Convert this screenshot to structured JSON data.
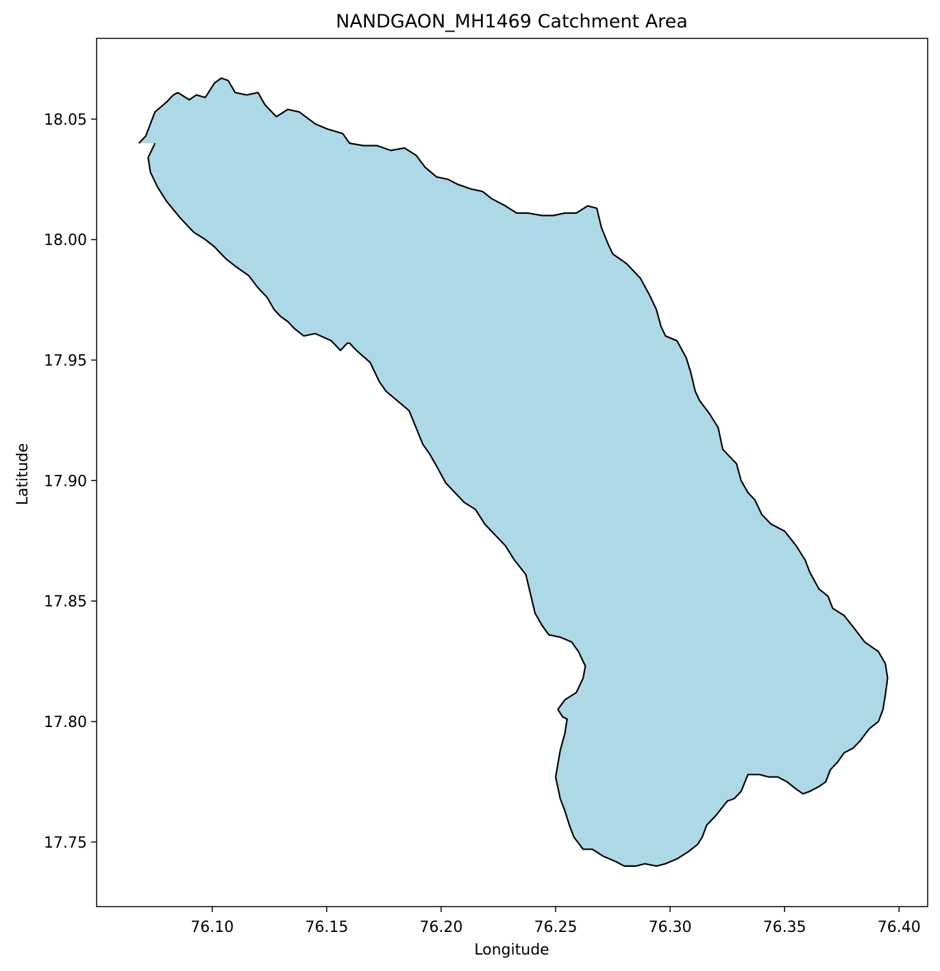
{
  "chart_data": {
    "type": "area",
    "title": "NANDGAON_MH1469 Catchment Area",
    "xlabel": "Longitude",
    "ylabel": "Latitude",
    "xlim": [
      76.0495,
      76.4125
    ],
    "ylim": [
      17.7232,
      18.0835
    ],
    "xticks": [
      76.1,
      76.15,
      76.2,
      76.25,
      76.3,
      76.35,
      76.4
    ],
    "xtick_labels": [
      "76.10",
      "76.15",
      "76.20",
      "76.25",
      "76.30",
      "76.35",
      "76.40"
    ],
    "yticks": [
      17.75,
      17.8,
      17.85,
      17.9,
      17.95,
      18.0,
      18.05
    ],
    "ytick_labels": [
      "17.75",
      "17.80",
      "17.85",
      "17.90",
      "17.95",
      "18.00",
      "18.05"
    ],
    "grid": false,
    "fill_color": "#add8e6",
    "edge_color": "#000000",
    "boundary": {
      "lon": [
        76.068,
        76.071,
        76.073,
        76.075,
        76.08,
        76.083,
        76.085,
        76.09,
        76.093,
        76.097,
        76.101,
        76.104,
        76.107,
        76.11,
        76.115,
        76.12,
        76.123,
        76.128,
        76.133,
        76.138,
        76.145,
        76.15,
        76.157,
        76.16,
        76.166,
        76.172,
        76.178,
        76.184,
        76.189,
        76.193,
        76.198,
        76.203,
        76.207,
        76.213,
        76.218,
        76.222,
        76.228,
        76.233,
        76.238,
        76.244,
        76.249,
        76.254,
        76.259,
        76.264,
        76.268,
        76.27,
        76.273,
        76.275,
        76.281,
        76.287,
        76.291,
        76.294,
        76.296,
        76.298,
        76.303,
        76.307,
        76.309,
        76.311,
        76.313,
        76.317,
        76.321,
        76.323,
        76.329,
        76.331,
        76.334,
        76.337,
        76.34,
        76.344,
        76.35,
        76.355,
        76.359,
        76.361,
        76.365,
        76.369,
        76.371,
        76.376,
        76.381,
        76.385,
        76.388,
        76.391,
        76.394,
        76.395,
        76.394,
        76.393,
        76.391,
        76.387,
        76.383,
        76.38,
        76.376,
        76.373,
        76.37,
        76.368,
        76.365,
        76.361,
        76.358,
        76.355,
        76.351,
        76.347,
        76.343,
        76.339,
        76.334,
        76.331,
        76.328,
        76.325,
        76.32,
        76.316,
        76.314,
        76.312,
        76.308,
        76.303,
        76.298,
        76.294,
        76.289,
        76.285,
        76.28,
        76.276,
        76.271,
        76.266,
        76.262,
        76.258,
        76.256,
        76.254,
        76.252,
        76.25,
        76.252,
        76.254,
        76.255,
        76.253,
        76.251,
        76.254,
        76.259,
        76.262,
        76.263,
        76.26,
        76.257,
        76.252,
        76.247,
        76.244,
        76.241,
        76.239,
        76.237,
        76.232,
        76.228,
        76.224,
        76.219,
        76.215,
        76.21,
        76.207,
        76.202,
        76.198,
        76.195,
        76.192,
        76.189,
        76.186,
        76.181,
        76.176,
        76.173,
        76.169,
        76.163,
        76.16,
        76.159,
        76.156,
        76.152,
        76.145,
        76.14,
        76.136,
        76.133,
        76.13,
        76.127,
        76.124,
        76.12,
        76.116,
        76.11,
        76.106,
        76.101,
        76.097,
        76.092,
        76.086,
        76.08,
        76.076,
        76.073,
        76.072,
        76.074,
        76.075,
        76.074,
        76.072,
        76.07,
        76.068
      ],
      "lat": [
        18.04,
        18.043,
        18.048,
        18.053,
        18.057,
        18.06,
        18.061,
        18.058,
        18.06,
        18.059,
        18.065,
        18.067,
        18.066,
        18.061,
        18.06,
        18.061,
        18.056,
        18.051,
        18.054,
        18.053,
        18.048,
        18.046,
        18.044,
        18.04,
        18.039,
        18.039,
        18.037,
        18.038,
        18.035,
        18.03,
        18.026,
        18.025,
        18.023,
        18.021,
        18.02,
        18.017,
        18.014,
        18.011,
        18.011,
        18.01,
        18.01,
        18.011,
        18.011,
        18.014,
        18.013,
        18.005,
        17.998,
        17.994,
        17.99,
        17.984,
        17.977,
        17.971,
        17.964,
        17.96,
        17.958,
        17.951,
        17.945,
        17.937,
        17.933,
        17.928,
        17.922,
        17.913,
        17.907,
        17.9,
        17.895,
        17.892,
        17.886,
        17.882,
        17.879,
        17.873,
        17.867,
        17.862,
        17.855,
        17.852,
        17.847,
        17.844,
        17.838,
        17.833,
        17.831,
        17.829,
        17.824,
        17.818,
        17.811,
        17.805,
        17.8,
        17.797,
        17.792,
        17.789,
        17.787,
        17.783,
        17.78,
        17.775,
        17.773,
        17.771,
        17.77,
        17.772,
        17.775,
        17.777,
        17.777,
        17.778,
        17.778,
        17.771,
        17.768,
        17.767,
        17.761,
        17.757,
        17.752,
        17.749,
        17.746,
        17.743,
        17.741,
        17.74,
        17.741,
        17.74,
        17.74,
        17.742,
        17.744,
        17.747,
        17.747,
        17.752,
        17.757,
        17.763,
        17.768,
        17.777,
        17.788,
        17.795,
        17.801,
        17.802,
        17.805,
        17.809,
        17.812,
        17.818,
        17.823,
        17.829,
        17.833,
        17.835,
        17.836,
        17.84,
        17.845,
        17.853,
        17.861,
        17.867,
        17.873,
        17.877,
        17.882,
        17.888,
        17.891,
        17.894,
        17.899,
        17.906,
        17.911,
        17.915,
        17.922,
        17.929,
        17.933,
        17.937,
        17.941,
        17.949,
        17.954,
        17.957,
        17.957,
        17.954,
        17.958,
        17.961,
        17.96,
        17.963,
        17.966,
        17.968,
        17.971,
        17.976,
        17.98,
        17.985,
        17.989,
        17.992,
        17.997,
        18.0,
        18.003,
        18.009,
        18.016,
        18.022,
        18.028,
        18.034,
        18.038,
        18.04
      ]
    }
  }
}
